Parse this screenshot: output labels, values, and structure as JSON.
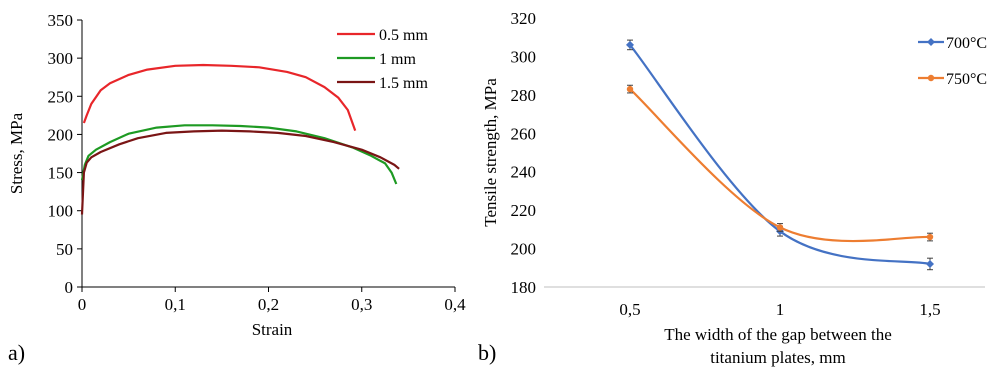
{
  "chart_data": [
    {
      "panel_label": "a)",
      "type": "line",
      "xlabel": "Strain",
      "ylabel": "Stress, MPa",
      "xlim": [
        0,
        0.4
      ],
      "ylim": [
        0,
        350
      ],
      "xticks": [
        0,
        0.1,
        0.2,
        0.3,
        0.4
      ],
      "xtick_labels": [
        "0",
        "0,1",
        "0,2",
        "0,3",
        "0,4"
      ],
      "yticks": [
        0,
        50,
        100,
        150,
        200,
        250,
        300,
        350
      ],
      "ytick_labels": [
        "0",
        "50",
        "100",
        "150",
        "200",
        "250",
        "300",
        "350"
      ],
      "grid": false,
      "legend_position": "top-right",
      "series": [
        {
          "name": "0.5 mm",
          "color": "#e8262a",
          "x": [
            0.002,
            0.005,
            0.01,
            0.02,
            0.03,
            0.05,
            0.07,
            0.1,
            0.13,
            0.16,
            0.19,
            0.22,
            0.24,
            0.26,
            0.275,
            0.285,
            0.293
          ],
          "y": [
            215,
            225,
            240,
            258,
            267,
            278,
            285,
            290,
            291,
            290,
            288,
            282,
            275,
            262,
            248,
            232,
            205
          ]
        },
        {
          "name": "1 mm",
          "color": "#1e9a23",
          "x": [
            0,
            0.003,
            0.007,
            0.015,
            0.03,
            0.05,
            0.08,
            0.11,
            0.14,
            0.17,
            0.2,
            0.23,
            0.26,
            0.29,
            0.31,
            0.325,
            0.332,
            0.337
          ],
          "y": [
            140,
            160,
            172,
            180,
            190,
            201,
            209,
            212,
            212,
            211,
            209,
            204,
            195,
            183,
            172,
            162,
            150,
            135
          ]
        },
        {
          "name": "1.5 mm",
          "color": "#7a1515",
          "x": [
            0,
            0.002,
            0.005,
            0.01,
            0.02,
            0.04,
            0.06,
            0.09,
            0.12,
            0.15,
            0.18,
            0.21,
            0.24,
            0.27,
            0.3,
            0.32,
            0.335,
            0.34
          ],
          "y": [
            95,
            150,
            163,
            170,
            177,
            187,
            195,
            202,
            204,
            205,
            204,
            202,
            198,
            190,
            180,
            170,
            160,
            155
          ]
        }
      ]
    },
    {
      "panel_label": "b)",
      "type": "line",
      "xlabel": "The width of the gap between the titanium plates, mm",
      "xlabel_lines": [
        "The width of the gap between the",
        "titanium plates, mm"
      ],
      "ylabel": "Tensile strength, MPa",
      "categories": [
        "0,5",
        "1",
        "1,5"
      ],
      "ylim": [
        180,
        320
      ],
      "yticks": [
        180,
        200,
        220,
        240,
        260,
        280,
        300,
        320
      ],
      "grid": false,
      "legend_position": "right",
      "series": [
        {
          "name": "700°C",
          "color": "#4472c4",
          "values": [
            306,
            209,
            192
          ],
          "error": [
            2.5,
            2.5,
            3
          ]
        },
        {
          "name": "750°C",
          "color": "#ed7d31",
          "values": [
            283,
            211,
            206
          ],
          "error": [
            2,
            2,
            2
          ]
        }
      ]
    }
  ]
}
